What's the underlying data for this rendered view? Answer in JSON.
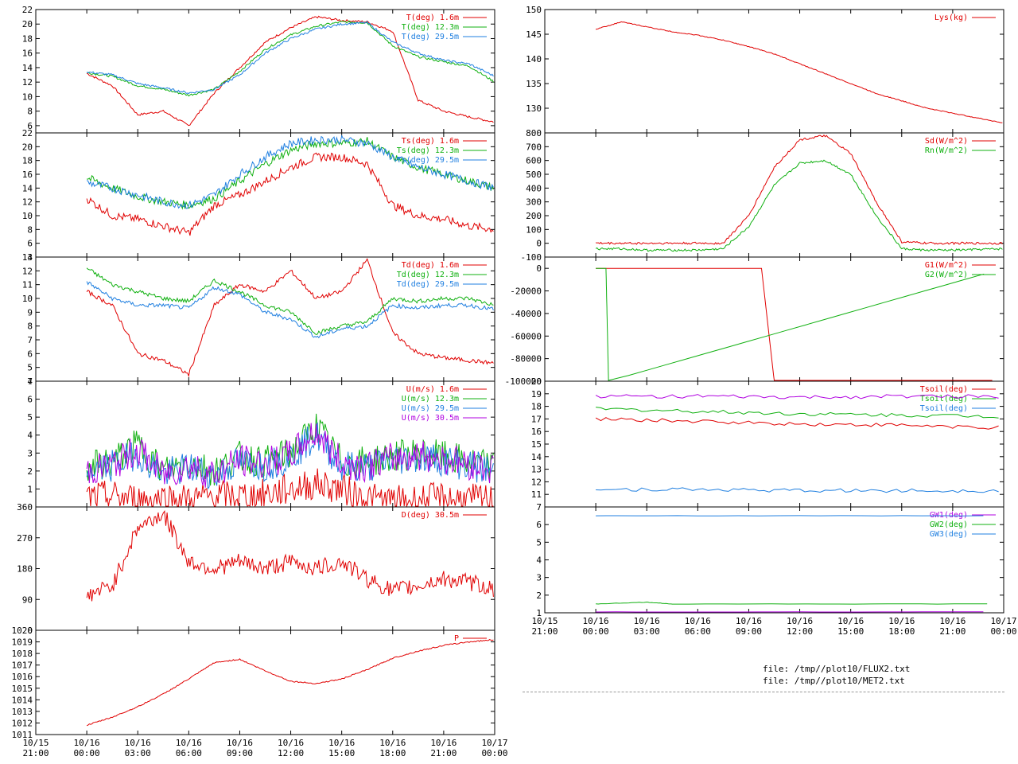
{
  "colors": {
    "red": "#e00000",
    "green": "#10b010",
    "blue": "#1f7fe0",
    "magenta": "#b000e0"
  },
  "files": [
    "file: /tmp//plot10/FLUX2.txt",
    "file: /tmp//plot10/MET2.txt"
  ],
  "x_ticks": [
    {
      "d": "10/15",
      "t": "21:00"
    },
    {
      "d": "10/16",
      "t": "00:00"
    },
    {
      "d": "10/16",
      "t": "03:00"
    },
    {
      "d": "10/16",
      "t": "06:00"
    },
    {
      "d": "10/16",
      "t": "09:00"
    },
    {
      "d": "10/16",
      "t": "12:00"
    },
    {
      "d": "10/16",
      "t": "15:00"
    },
    {
      "d": "10/16",
      "t": "18:00"
    },
    {
      "d": "10/16",
      "t": "21:00"
    },
    {
      "d": "10/17",
      "t": "00:00"
    }
  ],
  "chart_data": [
    {
      "id": "L1",
      "type": "line",
      "xlim": [
        "10/15 21:00",
        "10/17 00:00"
      ],
      "ylim": [
        5,
        22
      ],
      "yticks": [
        6,
        8,
        10,
        12,
        14,
        16,
        18,
        20,
        22
      ],
      "series": [
        {
          "name": "T(deg)  1.6m",
          "color": "red",
          "x": [
            0,
            1,
            2,
            3,
            4,
            5,
            6,
            7,
            8,
            9,
            10,
            11,
            12,
            13,
            14,
            15,
            16,
            17,
            18,
            19,
            20,
            21,
            22,
            23,
            24
          ],
          "y": [
            13.2,
            11.5,
            7.5,
            8,
            6,
            10.5,
            14,
            17.5,
            19.5,
            21,
            20.5,
            20.3,
            19,
            9.5,
            8,
            7.2,
            6.5,
            null,
            null,
            null,
            null,
            null,
            null,
            null,
            null
          ]
        },
        {
          "name": "T(deg) 12.3m",
          "color": "green",
          "x": [
            0,
            1,
            2,
            3,
            4,
            5,
            6,
            7,
            8,
            9,
            10,
            11,
            12,
            13,
            14,
            15,
            16,
            17,
            18,
            19,
            20,
            21,
            22,
            23,
            24
          ],
          "y": [
            13.3,
            12.8,
            11.5,
            11,
            10.2,
            11,
            13.5,
            16.5,
            18.5,
            19.7,
            20.3,
            20.2,
            17,
            15.5,
            14.8,
            14.2,
            12,
            null,
            null,
            null,
            null,
            null,
            null,
            null,
            null
          ]
        },
        {
          "name": "T(deg) 29.5m",
          "color": "blue",
          "x": [
            0,
            1,
            2,
            3,
            4,
            5,
            6,
            7,
            8,
            9,
            10,
            11,
            12,
            13,
            14,
            15,
            16,
            17,
            18,
            19,
            20,
            21,
            22,
            23,
            24
          ],
          "y": [
            13.4,
            13,
            11.8,
            11.2,
            10.5,
            11,
            13,
            16,
            18,
            19.3,
            20,
            20.2,
            17.5,
            16,
            15,
            14.5,
            12.8,
            null,
            null,
            null,
            null,
            null,
            null,
            null,
            null
          ]
        }
      ]
    },
    {
      "id": "L2",
      "type": "line",
      "ylim": [
        4,
        22
      ],
      "yticks": [
        4,
        6,
        8,
        10,
        12,
        14,
        16,
        18,
        20,
        22
      ],
      "series": [
        {
          "name": "Ts(deg)  1.6m",
          "color": "red",
          "x": [
            0,
            1,
            2,
            3,
            4,
            5,
            6,
            7,
            8,
            9,
            10,
            11,
            12,
            13,
            14,
            15,
            16
          ],
          "y": [
            12.5,
            10,
            9.5,
            8.5,
            7.5,
            11.5,
            13,
            15,
            17,
            18.5,
            18.5,
            17.5,
            11.5,
            10,
            9.5,
            8.5,
            8
          ]
        },
        {
          "name": "Ts(deg) 12.3m",
          "color": "green",
          "x": [
            0,
            1,
            2,
            3,
            4,
            5,
            6,
            7,
            8,
            9,
            10,
            11,
            12,
            13,
            14,
            15,
            16
          ],
          "y": [
            15.5,
            14,
            12.8,
            12,
            11.5,
            12.5,
            15,
            17.5,
            19.5,
            20.5,
            20.5,
            20.8,
            18.5,
            17,
            16,
            15,
            14
          ]
        },
        {
          "name": "Ts(deg) 29.5m",
          "color": "blue",
          "x": [
            0,
            1,
            2,
            3,
            4,
            5,
            6,
            7,
            8,
            9,
            10,
            11,
            12,
            13,
            14,
            15,
            16
          ],
          "y": [
            14.8,
            14,
            13,
            12,
            11.5,
            13,
            16,
            18.5,
            20.5,
            21,
            21,
            20.5,
            18.5,
            17,
            16,
            15,
            14
          ]
        }
      ]
    },
    {
      "id": "L3",
      "type": "line",
      "ylim": [
        4,
        13
      ],
      "yticks": [
        4,
        5,
        6,
        7,
        8,
        9,
        10,
        11,
        12,
        13
      ],
      "series": [
        {
          "name": "Td(deg)  1.6m",
          "color": "red",
          "x": [
            0,
            1,
            2,
            3,
            4,
            5,
            6,
            7,
            8,
            9,
            10,
            11,
            12,
            13,
            14,
            15,
            16
          ],
          "y": [
            10.5,
            9.5,
            6,
            5.5,
            4.5,
            9.5,
            11,
            10.5,
            12,
            10,
            10.5,
            12.8,
            7.5,
            6,
            5.7,
            5.5,
            5.3
          ]
        },
        {
          "name": "Td(deg) 12.3m",
          "color": "green",
          "x": [
            0,
            1,
            2,
            3,
            4,
            5,
            6,
            7,
            8,
            9,
            10,
            11,
            12,
            13,
            14,
            15,
            16
          ],
          "y": [
            12.2,
            11,
            10.5,
            10,
            9.8,
            11.3,
            10.5,
            9.5,
            9,
            7.5,
            8,
            8.3,
            10,
            9.8,
            10,
            10,
            9.5
          ]
        },
        {
          "name": "Td(deg) 29.5m",
          "color": "blue",
          "x": [
            0,
            1,
            2,
            3,
            4,
            5,
            6,
            7,
            8,
            9,
            10,
            11,
            12,
            13,
            14,
            15,
            16
          ],
          "y": [
            11.2,
            10,
            9.5,
            9.5,
            9.3,
            10.8,
            10.3,
            9,
            8.5,
            7.2,
            7.8,
            8,
            9.5,
            9.3,
            9.5,
            9.5,
            9.2
          ]
        }
      ]
    },
    {
      "id": "L4",
      "type": "line",
      "ylim": [
        0,
        7
      ],
      "yticks": [
        1,
        2,
        3,
        4,
        5,
        6,
        7
      ],
      "series": [
        {
          "name": "U(m/s)  1.6m",
          "color": "red",
          "x": [
            0,
            1,
            2,
            3,
            4,
            5,
            6,
            7,
            8,
            9,
            10,
            11,
            12,
            13,
            14,
            15,
            16
          ],
          "y": [
            0.5,
            0.6,
            0.4,
            0.5,
            0.4,
            0.6,
            0.6,
            0.7,
            1,
            1.3,
            1,
            0.5,
            0.3,
            0.4,
            0.5,
            0.4,
            0.4
          ]
        },
        {
          "name": "U(m/s) 12.3m",
          "color": "green",
          "x": [
            0,
            1,
            2,
            3,
            4,
            5,
            6,
            7,
            8,
            9,
            10,
            11,
            12,
            13,
            14,
            15,
            16
          ],
          "y": [
            2.2,
            2.5,
            3.5,
            2,
            2.5,
            2,
            2.8,
            2.5,
            3,
            4.5,
            2.5,
            2.5,
            2.8,
            3,
            2.8,
            2.5,
            2.2
          ]
        },
        {
          "name": "U(m/s) 29.5m",
          "color": "blue",
          "x": [
            0,
            1,
            2,
            3,
            4,
            5,
            6,
            7,
            8,
            9,
            10,
            11,
            12,
            13,
            14,
            15,
            16
          ],
          "y": [
            2,
            2.3,
            3,
            1.8,
            2.2,
            1.8,
            2.5,
            2.3,
            2.8,
            4,
            2.3,
            2.2,
            2.6,
            2.8,
            2.6,
            2.3,
            2
          ]
        },
        {
          "name": "U(m/s) 30.5m",
          "color": "magenta",
          "x": [
            0,
            1,
            2,
            3,
            4,
            5,
            6,
            7,
            8,
            9,
            10,
            11,
            12,
            13,
            14,
            15,
            16
          ],
          "y": [
            2,
            2.3,
            3.2,
            1.8,
            2.3,
            1.8,
            2.6,
            2.4,
            2.9,
            4.2,
            2.4,
            2.3,
            2.7,
            2.9,
            2.7,
            2.4,
            2.1
          ]
        }
      ]
    },
    {
      "id": "L5",
      "type": "line",
      "ylim": [
        0,
        360
      ],
      "yticks": [
        0,
        90,
        180,
        270,
        360
      ],
      "series": [
        {
          "name": "D(deg)  30.5m",
          "color": "red",
          "x": [
            0,
            1,
            2,
            3,
            4,
            5,
            6,
            7,
            8,
            9,
            10,
            11,
            12,
            13,
            14,
            15,
            16
          ],
          "y": [
            100,
            130,
            300,
            340,
            200,
            180,
            200,
            180,
            200,
            180,
            200,
            150,
            115,
            130,
            150,
            140,
            120
          ]
        }
      ]
    },
    {
      "id": "L6",
      "type": "line",
      "ylim": [
        1011,
        1020
      ],
      "yticks": [
        1011,
        1012,
        1013,
        1014,
        1015,
        1016,
        1017,
        1018,
        1019,
        1020
      ],
      "series": [
        {
          "name": "P",
          "color": "red",
          "x": [
            0,
            1,
            2,
            3,
            4,
            5,
            6,
            7,
            8,
            9,
            10,
            11,
            12,
            13,
            14,
            15,
            16
          ],
          "y": [
            1011.8,
            1012.5,
            1013.4,
            1014.5,
            1015.8,
            1017.2,
            1017.5,
            1016.5,
            1015.6,
            1015.4,
            1015.8,
            1016.6,
            1017.6,
            1018.2,
            1018.7,
            1019,
            1019.2
          ]
        }
      ]
    },
    {
      "id": "R1",
      "type": "line",
      "ylim": [
        125,
        150
      ],
      "yticks": [
        130,
        135,
        140,
        145,
        150
      ],
      "series": [
        {
          "name": "Lys(kg)",
          "color": "red",
          "x": [
            0,
            1,
            2,
            3,
            4,
            5,
            6,
            7,
            8,
            9,
            10,
            11,
            12,
            13,
            14,
            15,
            16
          ],
          "y": [
            146,
            147.5,
            146.5,
            145.5,
            144.8,
            143.8,
            142.5,
            141,
            139,
            137,
            135,
            133,
            131.5,
            130,
            129,
            128,
            127
          ]
        }
      ]
    },
    {
      "id": "R2",
      "type": "line",
      "ylim": [
        -100,
        800
      ],
      "yticks": [
        -100,
        0,
        100,
        200,
        300,
        400,
        500,
        600,
        700,
        800
      ],
      "series": [
        {
          "name": "Sd(W/m^2)",
          "color": "red",
          "x": [
            0,
            1,
            2,
            3,
            4,
            5,
            6,
            7,
            8,
            9,
            10,
            11,
            12,
            13,
            14,
            15,
            16
          ],
          "y": [
            0,
            0,
            0,
            0,
            0,
            0,
            200,
            550,
            750,
            780,
            650,
            300,
            10,
            0,
            0,
            0,
            0
          ]
        },
        {
          "name": "Rn(W/m^2)",
          "color": "green",
          "x": [
            0,
            1,
            2,
            3,
            4,
            5,
            6,
            7,
            8,
            9,
            10,
            11,
            12,
            13,
            14,
            15,
            16
          ],
          "y": [
            -40,
            -40,
            -50,
            -50,
            -50,
            -40,
            120,
            420,
            580,
            600,
            500,
            200,
            -40,
            -50,
            -50,
            -45,
            -40
          ]
        }
      ]
    },
    {
      "id": "R3",
      "type": "line",
      "ylim": [
        -100000,
        10000
      ],
      "yticks": [
        -100000,
        -80000,
        -60000,
        -40000,
        -20000,
        0
      ],
      "series": [
        {
          "name": "G1(W/m^2)",
          "color": "red",
          "x": [
            0,
            6.5,
            7,
            16
          ],
          "y": [
            0,
            0,
            -100000,
            -100000
          ]
        },
        {
          "name": "G2(W/m^2)",
          "color": "green",
          "x": [
            0,
            0.4,
            0.5,
            16
          ],
          "y": [
            0,
            0,
            -100000,
            0
          ]
        }
      ]
    },
    {
      "id": "R4",
      "type": "line",
      "ylim": [
        10,
        20
      ],
      "yticks": [
        11,
        12,
        13,
        14,
        15,
        16,
        17,
        18,
        19,
        20
      ],
      "series": [
        {
          "name": "Tsoil(deg)",
          "color": "red",
          "x": [
            0,
            4,
            8,
            12,
            16
          ],
          "y": [
            17,
            16.8,
            16.6,
            16.5,
            16.3
          ]
        },
        {
          "name": "Tsoil(deg)",
          "color": "green",
          "x": [
            0,
            4,
            8,
            12,
            16
          ],
          "y": [
            17.8,
            17.6,
            17.4,
            17.3,
            17.2
          ]
        },
        {
          "name": "Tsoil(deg)",
          "color": "blue",
          "x": [
            0,
            4,
            8,
            12,
            16
          ],
          "y": [
            11.4,
            11.4,
            11.3,
            11.3,
            11.3
          ]
        },
        {
          "name": "",
          "color": "magenta",
          "x": [
            0,
            4,
            8,
            12,
            16
          ],
          "y": [
            18.8,
            18.8,
            18.7,
            18.8,
            18.8
          ]
        }
      ]
    },
    {
      "id": "R5",
      "type": "line",
      "ylim": [
        1,
        7
      ],
      "yticks": [
        1,
        2,
        3,
        4,
        5,
        6,
        7
      ],
      "series": [
        {
          "name": "GW1(deg)",
          "color": "magenta",
          "x": [
            0,
            16
          ],
          "y": [
            1.05,
            1.05
          ]
        },
        {
          "name": "GW2(deg)",
          "color": "green",
          "x": [
            0,
            2,
            3,
            16
          ],
          "y": [
            1.5,
            1.6,
            1.5,
            1.5
          ]
        },
        {
          "name": "GW3(deg)",
          "color": "blue",
          "x": [
            0,
            16
          ],
          "y": [
            6.5,
            6.5
          ]
        }
      ]
    }
  ]
}
